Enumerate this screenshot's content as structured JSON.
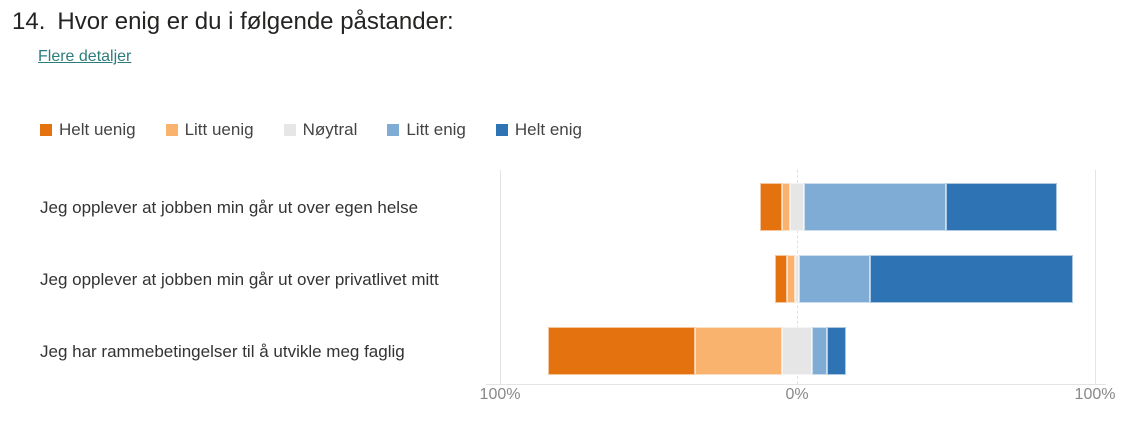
{
  "question": {
    "number": "14.",
    "title": "Hvor enig er du i følgende påstander:",
    "details_link": "Flere detaljer"
  },
  "chart_data": {
    "type": "bar",
    "orientation": "horizontal-diverging-stacked",
    "categories": [
      "Jeg opplever at jobben min går ut over egen helse",
      "Jeg opplever at jobben min går ut over privatlivet mitt",
      "Jeg har rammebetingelser til å utvikle meg faglig"
    ],
    "series": [
      {
        "name": "Helt uenig",
        "color": "#E3720F",
        "values": [
          7.5,
          4.0,
          49.3
        ]
      },
      {
        "name": "Litt uenig",
        "color": "#F9B36F",
        "values": [
          2.5,
          2.7,
          29.3
        ]
      },
      {
        "name": "Nøytral",
        "color": "#E6E6E6",
        "values": [
          5.0,
          1.3,
          10.2
        ]
      },
      {
        "name": "Litt enig",
        "color": "#7FACD4",
        "values": [
          47.5,
          24.0,
          5.1
        ]
      },
      {
        "name": "Helt enig",
        "color": "#2E74B5",
        "values": [
          37.5,
          68.0,
          6.3
        ]
      }
    ],
    "xlim": [
      -100,
      100
    ],
    "tick_labels": [
      "100%",
      "0%",
      "100%"
    ],
    "legend_position": "top-left",
    "grid": true
  }
}
